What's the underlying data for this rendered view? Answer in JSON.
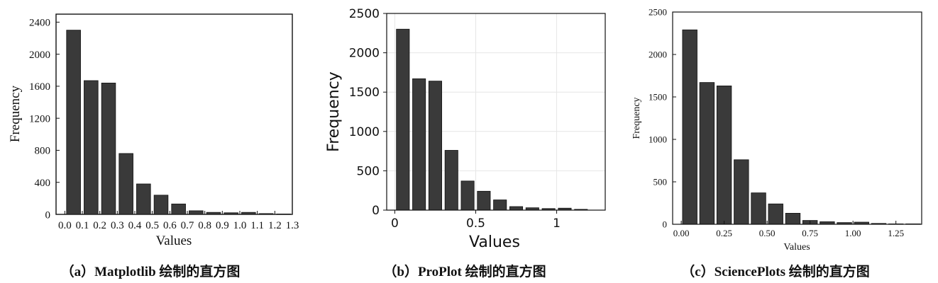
{
  "colors": {
    "bar_fill": "#3a3a3a",
    "bar_edge": "#111111",
    "axis": "#111111",
    "grid": "#e6e6e6",
    "background": "#ffffff"
  },
  "chart_data": [
    {
      "type": "bar",
      "caption": "（a）Matplotlib 绘制的直方图",
      "xlabel": "Values",
      "ylabel": "Frequency",
      "xlim": [
        -0.05,
        1.3
      ],
      "ylim": [
        0,
        2500
      ],
      "xticks": [
        0.0,
        0.1,
        0.2,
        0.3,
        0.4,
        0.5,
        0.6,
        0.7,
        0.8,
        0.9,
        1.0,
        1.1,
        1.2,
        1.3
      ],
      "xtick_labels": [
        "0.0",
        "0.1",
        "0.2",
        "0.3",
        "0.4",
        "0.5",
        "0.6",
        "0.7",
        "0.8",
        "0.9",
        "1.0",
        "1.1",
        "1.2",
        "1.3"
      ],
      "yticks": [
        0,
        400,
        800,
        1200,
        1600,
        2000,
        2400
      ],
      "ytick_labels": [
        "0",
        "400",
        "800",
        "1200",
        "1600",
        "2000",
        "2400"
      ],
      "grid": false,
      "bins": [
        0.0,
        0.1,
        0.2,
        0.3,
        0.4,
        0.5,
        0.6,
        0.7,
        0.8,
        0.9,
        1.0,
        1.1,
        1.2
      ],
      "values": [
        2300,
        1670,
        1640,
        760,
        380,
        240,
        130,
        45,
        25,
        20,
        25,
        10,
        5
      ]
    },
    {
      "type": "bar",
      "caption": "（b）ProPlot 绘制的直方图",
      "xlabel": "Values",
      "ylabel": "Frequency",
      "xlim": [
        -0.05,
        1.3
      ],
      "ylim": [
        0,
        2500
      ],
      "xticks": [
        0,
        0.5,
        1
      ],
      "xtick_labels": [
        "0",
        "0.5",
        "1"
      ],
      "yticks": [
        0,
        500,
        1000,
        1500,
        2000,
        2500
      ],
      "ytick_labels": [
        "0",
        "500",
        "1000",
        "1500",
        "2000",
        "2500"
      ],
      "grid": true,
      "bins": [
        0.0,
        0.1,
        0.2,
        0.3,
        0.4,
        0.5,
        0.6,
        0.7,
        0.8,
        0.9,
        1.0,
        1.1
      ],
      "values": [
        2300,
        1670,
        1640,
        760,
        370,
        240,
        130,
        45,
        30,
        20,
        25,
        10
      ]
    },
    {
      "type": "bar",
      "caption": "（c）SciencePlots 绘制的直方图",
      "xlabel": "Values",
      "ylabel": "Frequency",
      "xlim": [
        -0.05,
        1.4
      ],
      "ylim": [
        0,
        2500
      ],
      "xticks": [
        0.0,
        0.25,
        0.5,
        0.75,
        1.0,
        1.25
      ],
      "xtick_labels": [
        "0.00",
        "0.25",
        "0.50",
        "0.75",
        "1.00",
        "1.25"
      ],
      "yticks": [
        0,
        500,
        1000,
        1500,
        2000,
        2500
      ],
      "ytick_labels": [
        "0",
        "500",
        "1000",
        "1500",
        "2000",
        "2500"
      ],
      "grid": false,
      "bins": [
        0.0,
        0.1,
        0.2,
        0.3,
        0.4,
        0.5,
        0.6,
        0.7,
        0.8,
        0.9,
        1.0,
        1.1,
        1.2,
        1.3
      ],
      "values": [
        2290,
        1670,
        1630,
        760,
        370,
        240,
        130,
        45,
        30,
        20,
        25,
        10,
        5,
        5
      ]
    }
  ]
}
